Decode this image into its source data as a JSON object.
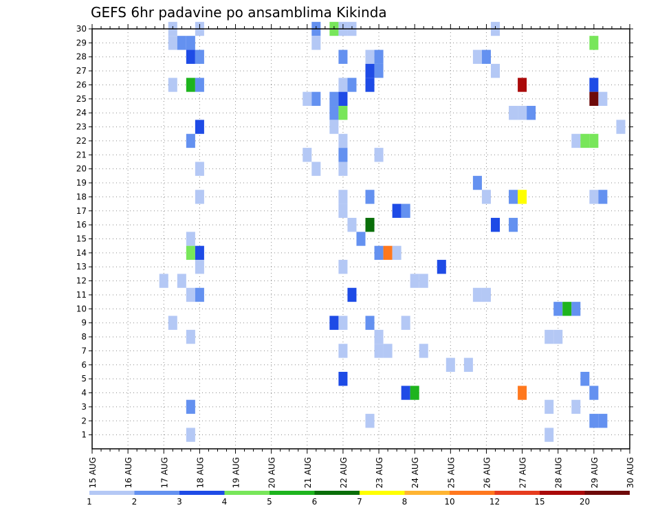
{
  "chart_data": {
    "type": "heatmap",
    "title": "GEFS 6hr padavine po ansamblima Kikinda",
    "x_ticks": [
      "15 AUG",
      "16 AUG",
      "17 AUG",
      "18 AUG",
      "19 AUG",
      "20 AUG",
      "21 AUG",
      "22 AUG",
      "23 AUG",
      "24 AUG",
      "25 AUG",
      "26 AUG",
      "27 AUG",
      "28 AUG",
      "29 AUG",
      "30 AUG"
    ],
    "y_ticks": [
      "1",
      "2",
      "3",
      "4",
      "5",
      "6",
      "7",
      "8",
      "9",
      "10",
      "11",
      "12",
      "13",
      "14",
      "15",
      "16",
      "17",
      "18",
      "19",
      "20",
      "21",
      "22",
      "23",
      "24",
      "25",
      "26",
      "27",
      "28",
      "29",
      "30"
    ],
    "xlim": [
      "15 AUG 00z",
      "30 AUG 00z"
    ],
    "ylim": [
      0,
      30
    ],
    "grid": true,
    "x_unit": "6hr steps from 15 AUG 00z",
    "colorbar": {
      "levels": [
        "1",
        "2",
        "3",
        "4",
        "5",
        "6",
        "7",
        "8",
        "10",
        "12",
        "15",
        "20"
      ],
      "colors": [
        "#b4c8f5",
        "#6491f0",
        "#1e4be6",
        "#78e65a",
        "#1eb41e",
        "#0a6e0a",
        "#ffff00",
        "#ffb432",
        "#ff781e",
        "#e63c1e",
        "#aa0a0a",
        "#6e0a0a"
      ]
    },
    "points": [
      {
        "t": 9,
        "m": 30,
        "c": 1
      },
      {
        "t": 12,
        "m": 30,
        "c": 1
      },
      {
        "t": 25,
        "m": 30,
        "c": 2
      },
      {
        "t": 27,
        "m": 30,
        "c": 4
      },
      {
        "t": 28,
        "m": 30,
        "c": 1
      },
      {
        "t": 29,
        "m": 30,
        "c": 1
      },
      {
        "t": 45,
        "m": 30,
        "c": 1
      },
      {
        "t": 9,
        "m": 29,
        "c": 1
      },
      {
        "t": 10,
        "m": 29,
        "c": 2
      },
      {
        "t": 11,
        "m": 29,
        "c": 2
      },
      {
        "t": 25,
        "m": 29,
        "c": 1
      },
      {
        "t": 56,
        "m": 29,
        "c": 4
      },
      {
        "t": 11,
        "m": 28,
        "c": 3
      },
      {
        "t": 12,
        "m": 28,
        "c": 2
      },
      {
        "t": 28,
        "m": 28,
        "c": 2
      },
      {
        "t": 31,
        "m": 28,
        "c": 1
      },
      {
        "t": 32,
        "m": 28,
        "c": 2
      },
      {
        "t": 43,
        "m": 28,
        "c": 1
      },
      {
        "t": 44,
        "m": 28,
        "c": 2
      },
      {
        "t": 31,
        "m": 27,
        "c": 3
      },
      {
        "t": 32,
        "m": 27,
        "c": 2
      },
      {
        "t": 45,
        "m": 27,
        "c": 1
      },
      {
        "t": 9,
        "m": 26,
        "c": 1
      },
      {
        "t": 11,
        "m": 26,
        "c": 5
      },
      {
        "t": 12,
        "m": 26,
        "c": 2
      },
      {
        "t": 28,
        "m": 26,
        "c": 1
      },
      {
        "t": 29,
        "m": 26,
        "c": 2
      },
      {
        "t": 31,
        "m": 26,
        "c": 3
      },
      {
        "t": 48,
        "m": 26,
        "c": 11
      },
      {
        "t": 56,
        "m": 26,
        "c": 3
      },
      {
        "t": 24,
        "m": 25,
        "c": 1
      },
      {
        "t": 25,
        "m": 25,
        "c": 2
      },
      {
        "t": 27,
        "m": 25,
        "c": 2
      },
      {
        "t": 28,
        "m": 25,
        "c": 3
      },
      {
        "t": 56,
        "m": 25,
        "c": 12
      },
      {
        "t": 57,
        "m": 25,
        "c": 1
      },
      {
        "t": 27,
        "m": 24,
        "c": 2
      },
      {
        "t": 28,
        "m": 24,
        "c": 4
      },
      {
        "t": 47,
        "m": 24,
        "c": 1
      },
      {
        "t": 48,
        "m": 24,
        "c": 1
      },
      {
        "t": 49,
        "m": 24,
        "c": 2
      },
      {
        "t": 12,
        "m": 23,
        "c": 3
      },
      {
        "t": 27,
        "m": 23,
        "c": 1
      },
      {
        "t": 59,
        "m": 23,
        "c": 1
      },
      {
        "t": 11,
        "m": 22,
        "c": 2
      },
      {
        "t": 28,
        "m": 22,
        "c": 1
      },
      {
        "t": 54,
        "m": 22,
        "c": 1
      },
      {
        "t": 55,
        "m": 22,
        "c": 4
      },
      {
        "t": 56,
        "m": 22,
        "c": 4
      },
      {
        "t": 24,
        "m": 21,
        "c": 1
      },
      {
        "t": 28,
        "m": 21,
        "c": 2
      },
      {
        "t": 32,
        "m": 21,
        "c": 1
      },
      {
        "t": 12,
        "m": 20,
        "c": 1
      },
      {
        "t": 25,
        "m": 20,
        "c": 1
      },
      {
        "t": 28,
        "m": 20,
        "c": 1
      },
      {
        "t": 43,
        "m": 19,
        "c": 2
      },
      {
        "t": 12,
        "m": 18,
        "c": 1
      },
      {
        "t": 28,
        "m": 18,
        "c": 1
      },
      {
        "t": 31,
        "m": 18,
        "c": 2
      },
      {
        "t": 44,
        "m": 18,
        "c": 1
      },
      {
        "t": 47,
        "m": 18,
        "c": 2
      },
      {
        "t": 48,
        "m": 18,
        "c": 7
      },
      {
        "t": 56,
        "m": 18,
        "c": 1
      },
      {
        "t": 57,
        "m": 18,
        "c": 2
      },
      {
        "t": 28,
        "m": 17,
        "c": 1
      },
      {
        "t": 34,
        "m": 17,
        "c": 3
      },
      {
        "t": 35,
        "m": 17,
        "c": 2
      },
      {
        "t": 29,
        "m": 16,
        "c": 1
      },
      {
        "t": 31,
        "m": 16,
        "c": 6
      },
      {
        "t": 45,
        "m": 16,
        "c": 3
      },
      {
        "t": 47,
        "m": 16,
        "c": 2
      },
      {
        "t": 11,
        "m": 15,
        "c": 1
      },
      {
        "t": 30,
        "m": 15,
        "c": 2
      },
      {
        "t": 11,
        "m": 14,
        "c": 4
      },
      {
        "t": 12,
        "m": 14,
        "c": 3
      },
      {
        "t": 32,
        "m": 14,
        "c": 2
      },
      {
        "t": 33,
        "m": 14,
        "c": 9
      },
      {
        "t": 34,
        "m": 14,
        "c": 1
      },
      {
        "t": 12,
        "m": 13,
        "c": 1
      },
      {
        "t": 28,
        "m": 13,
        "c": 1
      },
      {
        "t": 39,
        "m": 13,
        "c": 3
      },
      {
        "t": 8,
        "m": 12,
        "c": 1
      },
      {
        "t": 10,
        "m": 12,
        "c": 1
      },
      {
        "t": 36,
        "m": 12,
        "c": 1
      },
      {
        "t": 37,
        "m": 12,
        "c": 1
      },
      {
        "t": 11,
        "m": 11,
        "c": 1
      },
      {
        "t": 12,
        "m": 11,
        "c": 2
      },
      {
        "t": 29,
        "m": 11,
        "c": 3
      },
      {
        "t": 43,
        "m": 11,
        "c": 1
      },
      {
        "t": 44,
        "m": 11,
        "c": 1
      },
      {
        "t": 52,
        "m": 10,
        "c": 2
      },
      {
        "t": 53,
        "m": 10,
        "c": 5
      },
      {
        "t": 54,
        "m": 10,
        "c": 2
      },
      {
        "t": 9,
        "m": 9,
        "c": 1
      },
      {
        "t": 27,
        "m": 9,
        "c": 3
      },
      {
        "t": 28,
        "m": 9,
        "c": 1
      },
      {
        "t": 31,
        "m": 9,
        "c": 2
      },
      {
        "t": 35,
        "m": 9,
        "c": 1
      },
      {
        "t": 11,
        "m": 8,
        "c": 1
      },
      {
        "t": 32,
        "m": 8,
        "c": 1
      },
      {
        "t": 51,
        "m": 8,
        "c": 1
      },
      {
        "t": 52,
        "m": 8,
        "c": 1
      },
      {
        "t": 28,
        "m": 7,
        "c": 1
      },
      {
        "t": 32,
        "m": 7,
        "c": 1
      },
      {
        "t": 33,
        "m": 7,
        "c": 1
      },
      {
        "t": 37,
        "m": 7,
        "c": 1
      },
      {
        "t": 40,
        "m": 6,
        "c": 1
      },
      {
        "t": 42,
        "m": 6,
        "c": 1
      },
      {
        "t": 28,
        "m": 5,
        "c": 3
      },
      {
        "t": 55,
        "m": 5,
        "c": 2
      },
      {
        "t": 35,
        "m": 4,
        "c": 3
      },
      {
        "t": 36,
        "m": 4,
        "c": 5
      },
      {
        "t": 48,
        "m": 4,
        "c": 9
      },
      {
        "t": 56,
        "m": 4,
        "c": 2
      },
      {
        "t": 11,
        "m": 3,
        "c": 2
      },
      {
        "t": 51,
        "m": 3,
        "c": 1
      },
      {
        "t": 54,
        "m": 3,
        "c": 1
      },
      {
        "t": 31,
        "m": 2,
        "c": 1
      },
      {
        "t": 56,
        "m": 2,
        "c": 2
      },
      {
        "t": 57,
        "m": 2,
        "c": 2
      },
      {
        "t": 11,
        "m": 1,
        "c": 1
      },
      {
        "t": 51,
        "m": 1,
        "c": 1
      }
    ]
  }
}
